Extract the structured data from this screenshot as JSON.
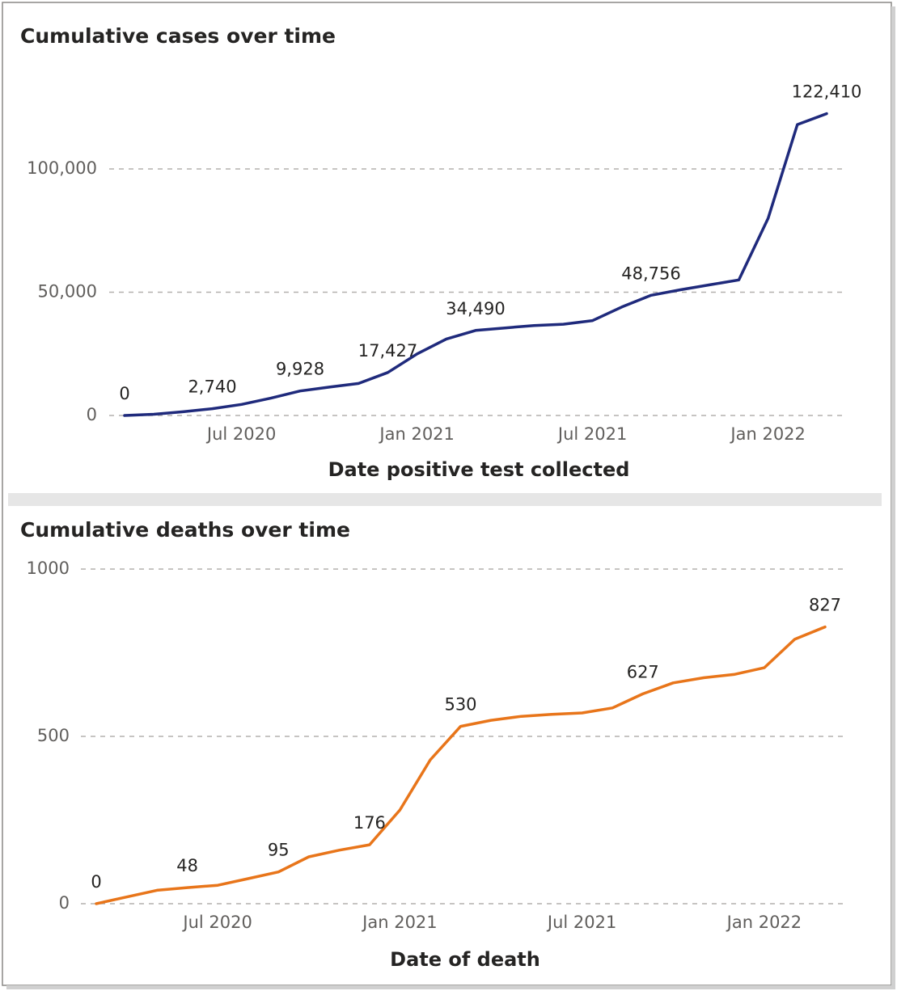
{
  "chart_data": [
    {
      "type": "line",
      "title": "Cumulative cases over time",
      "x_label": "Date positive test collected",
      "x": [
        "2020-03",
        "2020-04",
        "2020-05",
        "2020-06",
        "2020-07",
        "2020-08",
        "2020-09",
        "2020-10",
        "2020-11",
        "2020-12",
        "2021-01",
        "2021-02",
        "2021-03",
        "2021-04",
        "2021-05",
        "2021-06",
        "2021-07",
        "2021-08",
        "2021-09",
        "2021-10",
        "2021-11",
        "2021-12",
        "2022-01",
        "2022-02",
        "2022-03"
      ],
      "values": [
        0,
        500,
        1500,
        2740,
        4500,
        7000,
        9928,
        11500,
        13000,
        17427,
        25000,
        31000,
        34490,
        35500,
        36500,
        37000,
        38500,
        44000,
        48756,
        51000,
        53000,
        55000,
        80000,
        118000,
        122410
      ],
      "value_labels": [
        "0",
        null,
        null,
        "2,740",
        null,
        null,
        "9,928",
        null,
        null,
        "17,427",
        null,
        null,
        "34,490",
        null,
        null,
        null,
        null,
        null,
        "48,756",
        null,
        null,
        null,
        null,
        null,
        "122,410"
      ],
      "color": "#1f2a7c",
      "xlim": [
        "2020-03",
        "2022-03"
      ],
      "xticks": [
        {
          "value": "2020-07",
          "label": "Jul 2020"
        },
        {
          "value": "2021-01",
          "label": "Jan 2021"
        },
        {
          "value": "2021-07",
          "label": "Jul 2021"
        },
        {
          "value": "2022-01",
          "label": "Jan 2022"
        }
      ],
      "ylim": [
        0,
        140000
      ],
      "yticks": [
        0,
        {
          "value": 50000,
          "label": "50,000"
        },
        {
          "value": 100000,
          "label": "100,000"
        }
      ],
      "grid": true
    },
    {
      "type": "line",
      "title": "Cumulative deaths over time",
      "x_label": "Date of death",
      "x": [
        "2020-03",
        "2020-04",
        "2020-05",
        "2020-06",
        "2020-07",
        "2020-08",
        "2020-09",
        "2020-10",
        "2020-11",
        "2020-12",
        "2021-01",
        "2021-02",
        "2021-03",
        "2021-04",
        "2021-05",
        "2021-06",
        "2021-07",
        "2021-08",
        "2021-09",
        "2021-10",
        "2021-11",
        "2021-12",
        "2022-01",
        "2022-02",
        "2022-03"
      ],
      "values": [
        0,
        20,
        40,
        48,
        55,
        75,
        95,
        140,
        160,
        176,
        280,
        430,
        530,
        548,
        560,
        566,
        570,
        585,
        627,
        660,
        675,
        685,
        705,
        790,
        827
      ],
      "value_labels": [
        "0",
        null,
        null,
        "48",
        null,
        null,
        "95",
        null,
        null,
        "176",
        null,
        null,
        "530",
        null,
        null,
        null,
        null,
        null,
        "627",
        null,
        null,
        null,
        null,
        null,
        "827"
      ],
      "color": "#e8751a",
      "xlim": [
        "2020-03",
        "2022-03"
      ],
      "xticks": [
        {
          "value": "2020-07",
          "label": "Jul 2020"
        },
        {
          "value": "2021-01",
          "label": "Jan 2021"
        },
        {
          "value": "2021-07",
          "label": "Jul 2021"
        },
        {
          "value": "2022-01",
          "label": "Jan 2022"
        }
      ],
      "ylim": [
        0,
        1000
      ],
      "yticks": [
        0,
        500,
        1000
      ],
      "grid": true
    }
  ]
}
